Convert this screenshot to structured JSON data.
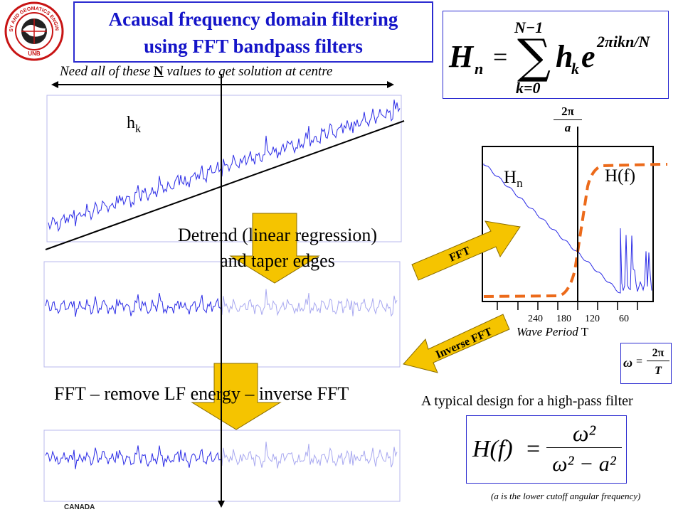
{
  "title": {
    "line1": "Acausal frequency domain filtering",
    "line2": "using FFT bandpass filters"
  },
  "logo": {
    "text_top": "GEODESY AND GEOMATICS ENGINEERING",
    "text_bottom": "UNB"
  },
  "formula_hn": {
    "lhs": "H",
    "lhs_sub": "n",
    "upper": "N−1",
    "lower": "k=0",
    "term": "h",
    "term_sub": "k",
    "base": "e",
    "exponent": "2πikn/N"
  },
  "annotations": {
    "need_pre": "Need all of these ",
    "need_n": "N",
    "need_post": " values  to get solution at centre",
    "hk_label": "h",
    "hk_sub": "k",
    "detrend_line1": "Detrend (linear regression)",
    "detrend_line2": "and taper edges",
    "fft_line": "FFT – remove LF energy – inverse FFT",
    "fft_arrow": "FFT",
    "inverse_arrow": "Inverse FFT",
    "typical": "A typical design for a high-pass filter",
    "cutoff_note": "(a is the lower cutoff angular frequency)",
    "canada": "CANADA"
  },
  "spectrum_plot": {
    "hn_label": "H",
    "hn_sub": "n",
    "hf_label": "H(f)",
    "marker_num": "2π",
    "marker_den": "a",
    "axis_label_italic": "Wave Period",
    "axis_label_var": "T",
    "ticks": [
      "240",
      "180",
      "120",
      "60"
    ]
  },
  "omega_formula": {
    "lhs": "ω",
    "num": "2π",
    "den": "T"
  },
  "hf_formula": {
    "lhs": "H(f)",
    "num": "ω²",
    "den": "ω² − a²"
  },
  "colors": {
    "title_blue": "#1414c8",
    "signal_blue": "#2a2ae6",
    "faded_blue": "#a8a8f0",
    "arrow_gold": "#f5c400",
    "filter_orange": "#ec6a1a"
  }
}
